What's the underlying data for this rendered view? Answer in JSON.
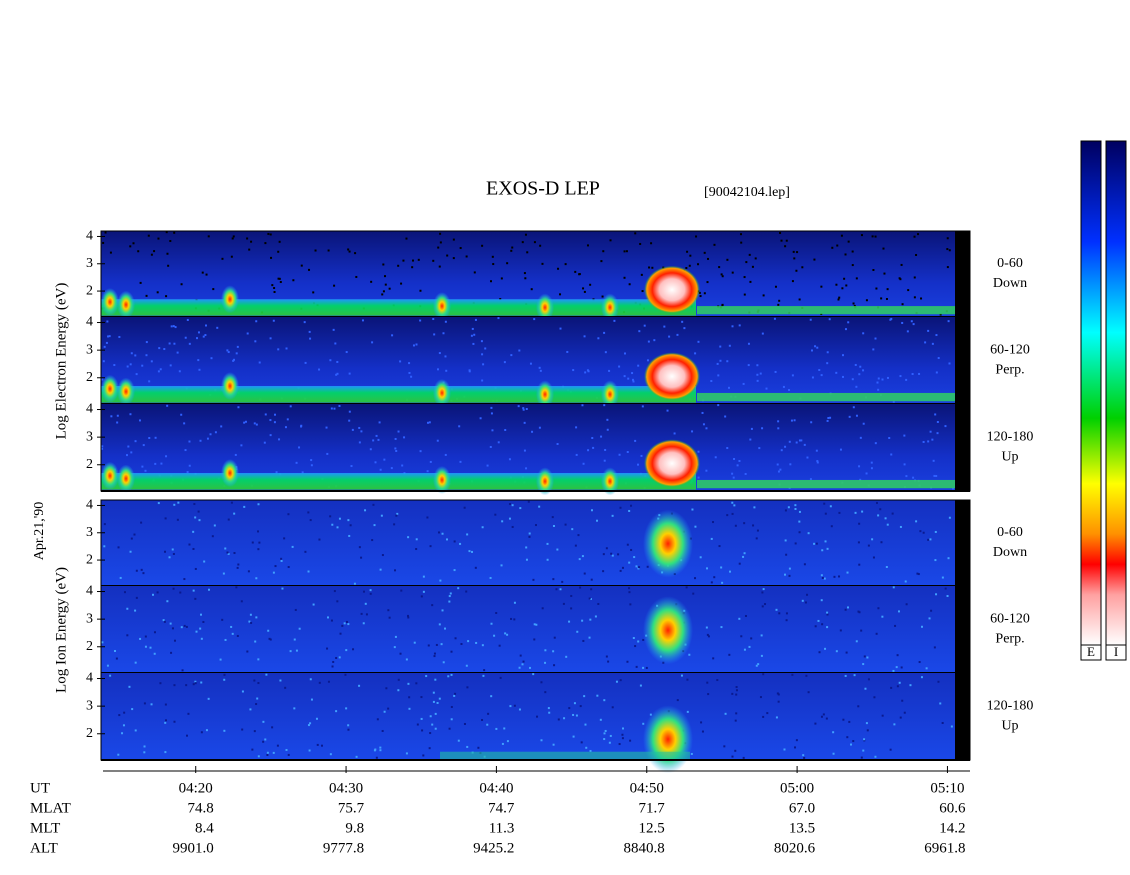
{
  "chart_data": {
    "type": "spectrogram",
    "title": "EXOS-D LEP",
    "subtitle": "[90042104.lep]",
    "date": "Apr.21,'90",
    "groups": [
      {
        "ylabel": "Log Electron Energy (eV)",
        "panels": [
          [
            "0-60",
            "Down"
          ],
          [
            "60-120",
            "Perp."
          ],
          [
            "120-180",
            "Up"
          ]
        ]
      },
      {
        "ylabel": "Log Ion Energy (eV)",
        "panels": [
          [
            "0-60",
            "Down"
          ],
          [
            "60-120",
            "Perp."
          ],
          [
            "120-180",
            "Up"
          ]
        ]
      }
    ],
    "ylim": [
      1.05,
      4.2
    ],
    "yticks": [
      2,
      3,
      4
    ],
    "xlim": [
      253.7,
      311.5
    ],
    "xticks": [
      {
        "value": 260,
        "label": "04:20"
      },
      {
        "value": 270,
        "label": "04:30"
      },
      {
        "value": 280,
        "label": "04:40"
      },
      {
        "value": 290,
        "label": "04:50"
      },
      {
        "value": 300,
        "label": "05:00"
      },
      {
        "value": 310,
        "label": "05:10"
      }
    ],
    "ut_label": "UT",
    "rows": [
      {
        "name": "MLAT",
        "values": [
          "74.8",
          "75.7",
          "74.7",
          "71.7",
          "67.0",
          "60.6"
        ]
      },
      {
        "name": "MLT",
        "values": [
          "8.4",
          "9.8",
          "11.3",
          "12.5",
          "13.5",
          "14.2"
        ]
      },
      {
        "name": "ALT",
        "values": [
          "9901.0",
          "9777.8",
          "9425.2",
          "8840.8",
          "8020.6",
          "6961.8"
        ]
      }
    ],
    "colorbar_labels": [
      "E",
      "I"
    ]
  }
}
